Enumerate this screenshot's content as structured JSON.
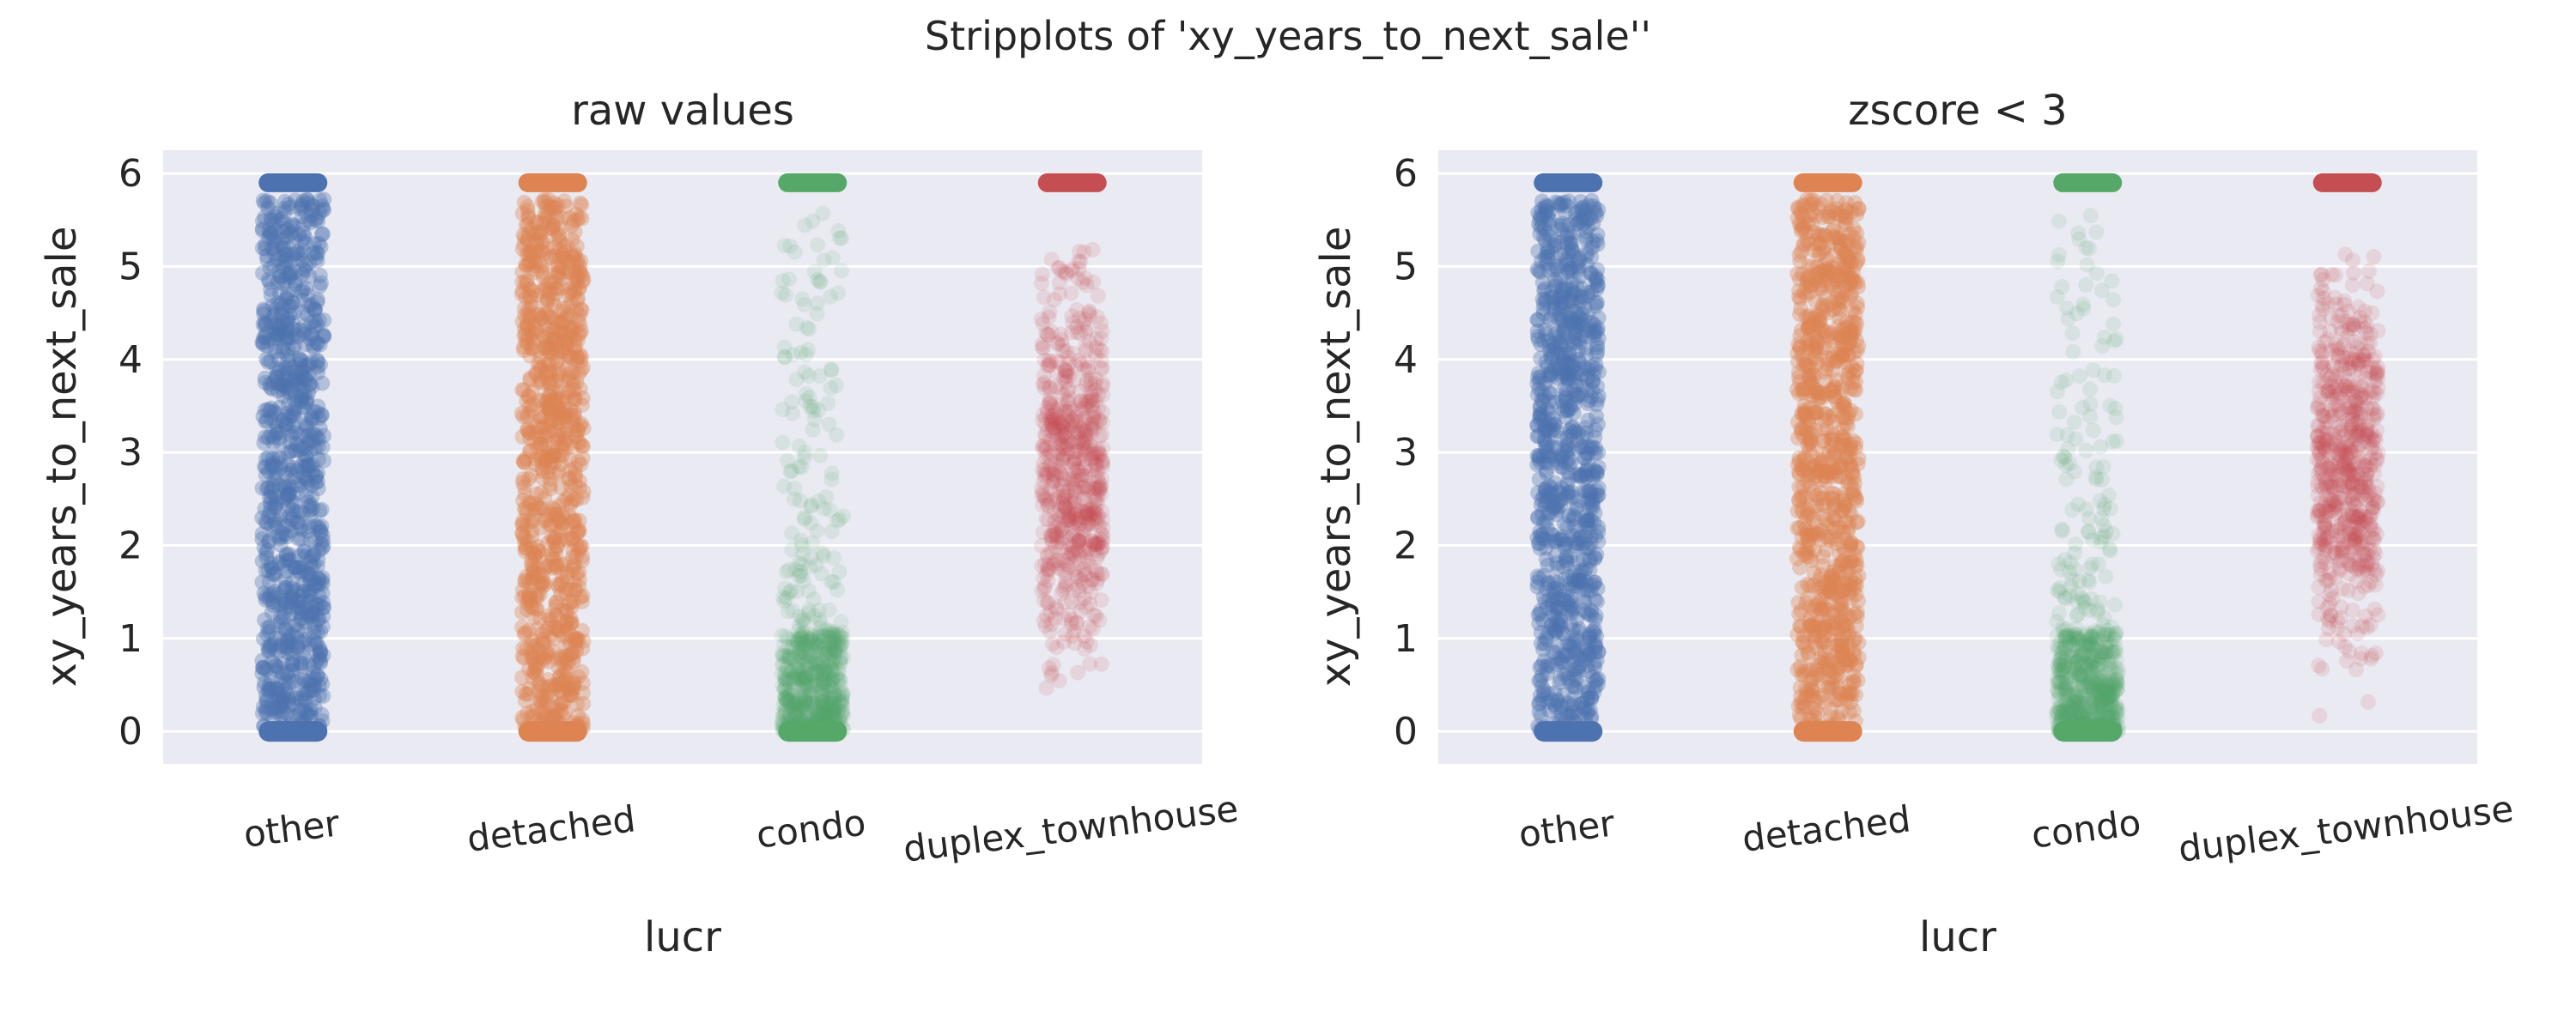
{
  "figure": {
    "title": "Stripplots of 'xy_years_to_next_sale''"
  },
  "chart_data": [
    {
      "type": "scatter",
      "subtype": "stripplot",
      "title": "raw values",
      "xlabel": "lucr",
      "ylabel": "xy_years_to_next_sale",
      "categories": [
        "other",
        "detached",
        "condo",
        "duplex_townhouse"
      ],
      "colors": [
        "#4c72b0",
        "#dd8452",
        "#55a868",
        "#c44e52"
      ],
      "yticks": [
        "0",
        "1",
        "2",
        "3",
        "4",
        "5",
        "6"
      ],
      "ylim": [
        -0.35,
        6.25
      ],
      "grid": true,
      "series": [
        {
          "category": "other",
          "min": 0,
          "max": 5.9,
          "cap_value": 5.9,
          "density": "very high"
        },
        {
          "category": "detached",
          "min": 0,
          "max": 5.9,
          "cap_value": 5.9,
          "density": "very high"
        },
        {
          "category": "condo",
          "min": 0,
          "max": 5.9,
          "cap_value": 5.9,
          "density": "concentrated 0-1, sparse above"
        },
        {
          "category": "duplex_townhouse",
          "min": 0.05,
          "max": 5.9,
          "cap_value": 5.9,
          "density": "moderate, sparse at ends"
        }
      ]
    },
    {
      "type": "scatter",
      "subtype": "stripplot",
      "title": "zscore < 3",
      "xlabel": "lucr",
      "ylabel": "xy_years_to_next_sale",
      "categories": [
        "other",
        "detached",
        "condo",
        "duplex_townhouse"
      ],
      "colors": [
        "#4c72b0",
        "#dd8452",
        "#55a868",
        "#c44e52"
      ],
      "yticks": [
        "0",
        "1",
        "2",
        "3",
        "4",
        "5",
        "6"
      ],
      "ylim": [
        -0.35,
        6.25
      ],
      "grid": true,
      "series": [
        {
          "category": "other",
          "min": 0,
          "max": 5.9,
          "cap_value": 5.9,
          "density": "very high"
        },
        {
          "category": "detached",
          "min": 0,
          "max": 5.9,
          "cap_value": 5.9,
          "density": "very high"
        },
        {
          "category": "condo",
          "min": 0,
          "max": 5.9,
          "cap_value": 5.9,
          "density": "concentrated 0-1, sparse above"
        },
        {
          "category": "duplex_townhouse",
          "min": 0.05,
          "max": 5.9,
          "cap_value": 5.9,
          "density": "moderate, sparse at ends"
        }
      ]
    }
  ]
}
